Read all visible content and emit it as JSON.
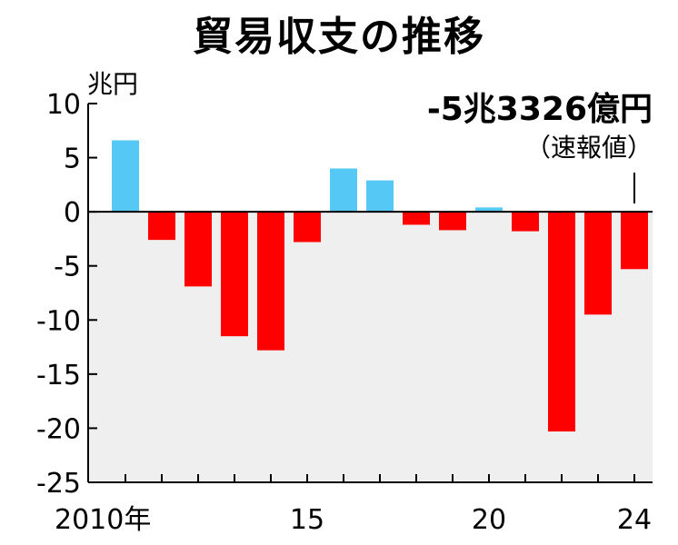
{
  "chart_data": {
    "type": "bar",
    "title": "貿易収支の推移",
    "ylabel": "兆円",
    "ylim": [
      -25,
      10
    ],
    "yticks": [
      10,
      5,
      0,
      -5,
      -10,
      -15,
      -20,
      -25
    ],
    "ytick_labels": [
      "10",
      "5",
      "0",
      "-5",
      "-10",
      "-15",
      "-20",
      "-25"
    ],
    "categories": [
      "2010",
      "2011",
      "2012",
      "2013",
      "2014",
      "2015",
      "2016",
      "2017",
      "2018",
      "2019",
      "2020",
      "2021",
      "2022",
      "2023",
      "2024"
    ],
    "xtick_labels": [
      {
        "index": 0,
        "label": "2010年"
      },
      {
        "index": 5,
        "label": "15"
      },
      {
        "index": 10,
        "label": "20"
      },
      {
        "index": 14,
        "label": "24"
      }
    ],
    "values": [
      6.6,
      -2.6,
      -6.9,
      -11.5,
      -12.8,
      -2.8,
      4.0,
      2.9,
      -1.2,
      -1.7,
      0.4,
      -1.8,
      -20.3,
      -9.5,
      -5.3
    ],
    "colors": {
      "positive": "#55c8f5",
      "negative": "#ff0000",
      "negative_region": "#efefef"
    },
    "annotation": {
      "index": 14,
      "line1": "-5兆3326億円",
      "line2": "（速報値）"
    }
  }
}
